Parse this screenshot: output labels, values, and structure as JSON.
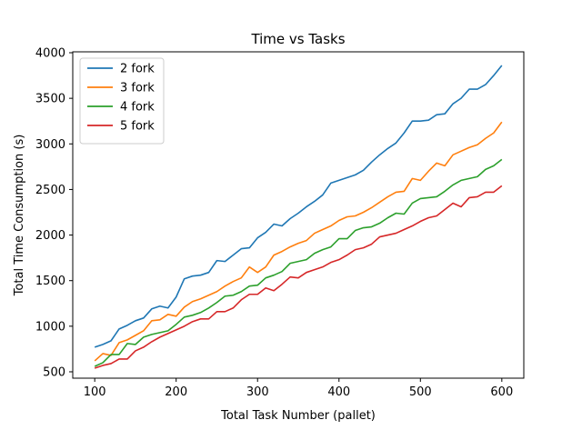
{
  "chart_data": {
    "type": "line",
    "title": "Time vs Tasks",
    "xlabel": "Total Task Number (pallet)",
    "ylabel": "Total Time Consumption (s)",
    "xlim": [
      73,
      627
    ],
    "ylim": [
      430,
      4010
    ],
    "xticks": [
      100,
      200,
      300,
      400,
      500,
      600
    ],
    "yticks": [
      500,
      1000,
      1500,
      2000,
      2500,
      3000,
      3500,
      4000
    ],
    "grid": false,
    "legend_position": "top-left",
    "x": [
      100,
      110,
      120,
      130,
      140,
      150,
      160,
      170,
      180,
      190,
      200,
      210,
      220,
      230,
      240,
      250,
      260,
      270,
      280,
      290,
      300,
      310,
      320,
      330,
      340,
      350,
      360,
      370,
      380,
      390,
      400,
      410,
      420,
      430,
      440,
      450,
      460,
      470,
      480,
      490,
      500,
      510,
      520,
      530,
      540,
      550,
      560,
      570,
      580,
      590,
      600
    ],
    "series": [
      {
        "name": "2 fork",
        "color": "#1f77b4",
        "values": [
          770,
          800,
          840,
          970,
          1010,
          1060,
          1090,
          1190,
          1220,
          1200,
          1320,
          1520,
          1550,
          1560,
          1590,
          1720,
          1710,
          1780,
          1850,
          1860,
          1970,
          2030,
          2120,
          2100,
          2180,
          2240,
          2310,
          2370,
          2440,
          2570,
          2600,
          2630,
          2660,
          2710,
          2800,
          2880,
          2950,
          3010,
          3120,
          3250,
          3250,
          3260,
          3320,
          3330,
          3440,
          3500,
          3600,
          3600,
          3650,
          3750,
          3860
        ]
      },
      {
        "name": "3 fork",
        "color": "#ff7f0e",
        "values": [
          620,
          700,
          680,
          820,
          850,
          900,
          950,
          1060,
          1070,
          1130,
          1110,
          1210,
          1270,
          1300,
          1340,
          1380,
          1440,
          1490,
          1530,
          1650,
          1590,
          1650,
          1780,
          1820,
          1870,
          1910,
          1940,
          2020,
          2060,
          2100,
          2160,
          2200,
          2210,
          2250,
          2300,
          2360,
          2420,
          2470,
          2480,
          2620,
          2600,
          2700,
          2790,
          2760,
          2880,
          2920,
          2960,
          2990,
          3060,
          3120,
          3240
        ]
      },
      {
        "name": "4 fork",
        "color": "#2ca02c",
        "values": [
          560,
          600,
          690,
          690,
          810,
          800,
          880,
          910,
          930,
          950,
          1020,
          1100,
          1120,
          1150,
          1200,
          1260,
          1330,
          1340,
          1380,
          1440,
          1450,
          1530,
          1560,
          1600,
          1690,
          1710,
          1730,
          1800,
          1840,
          1870,
          1960,
          1960,
          2050,
          2080,
          2090,
          2130,
          2190,
          2240,
          2230,
          2350,
          2400,
          2410,
          2420,
          2480,
          2550,
          2600,
          2620,
          2640,
          2720,
          2760,
          2830
        ]
      },
      {
        "name": "5 fork",
        "color": "#d62728",
        "values": [
          540,
          570,
          590,
          640,
          640,
          730,
          770,
          830,
          880,
          920,
          960,
          1000,
          1050,
          1080,
          1080,
          1160,
          1160,
          1200,
          1290,
          1350,
          1350,
          1420,
          1390,
          1460,
          1540,
          1530,
          1590,
          1620,
          1650,
          1700,
          1730,
          1780,
          1840,
          1860,
          1900,
          1980,
          2000,
          2020,
          2060,
          2100,
          2150,
          2190,
          2210,
          2280,
          2350,
          2310,
          2410,
          2420,
          2470,
          2470,
          2540
        ]
      }
    ]
  }
}
